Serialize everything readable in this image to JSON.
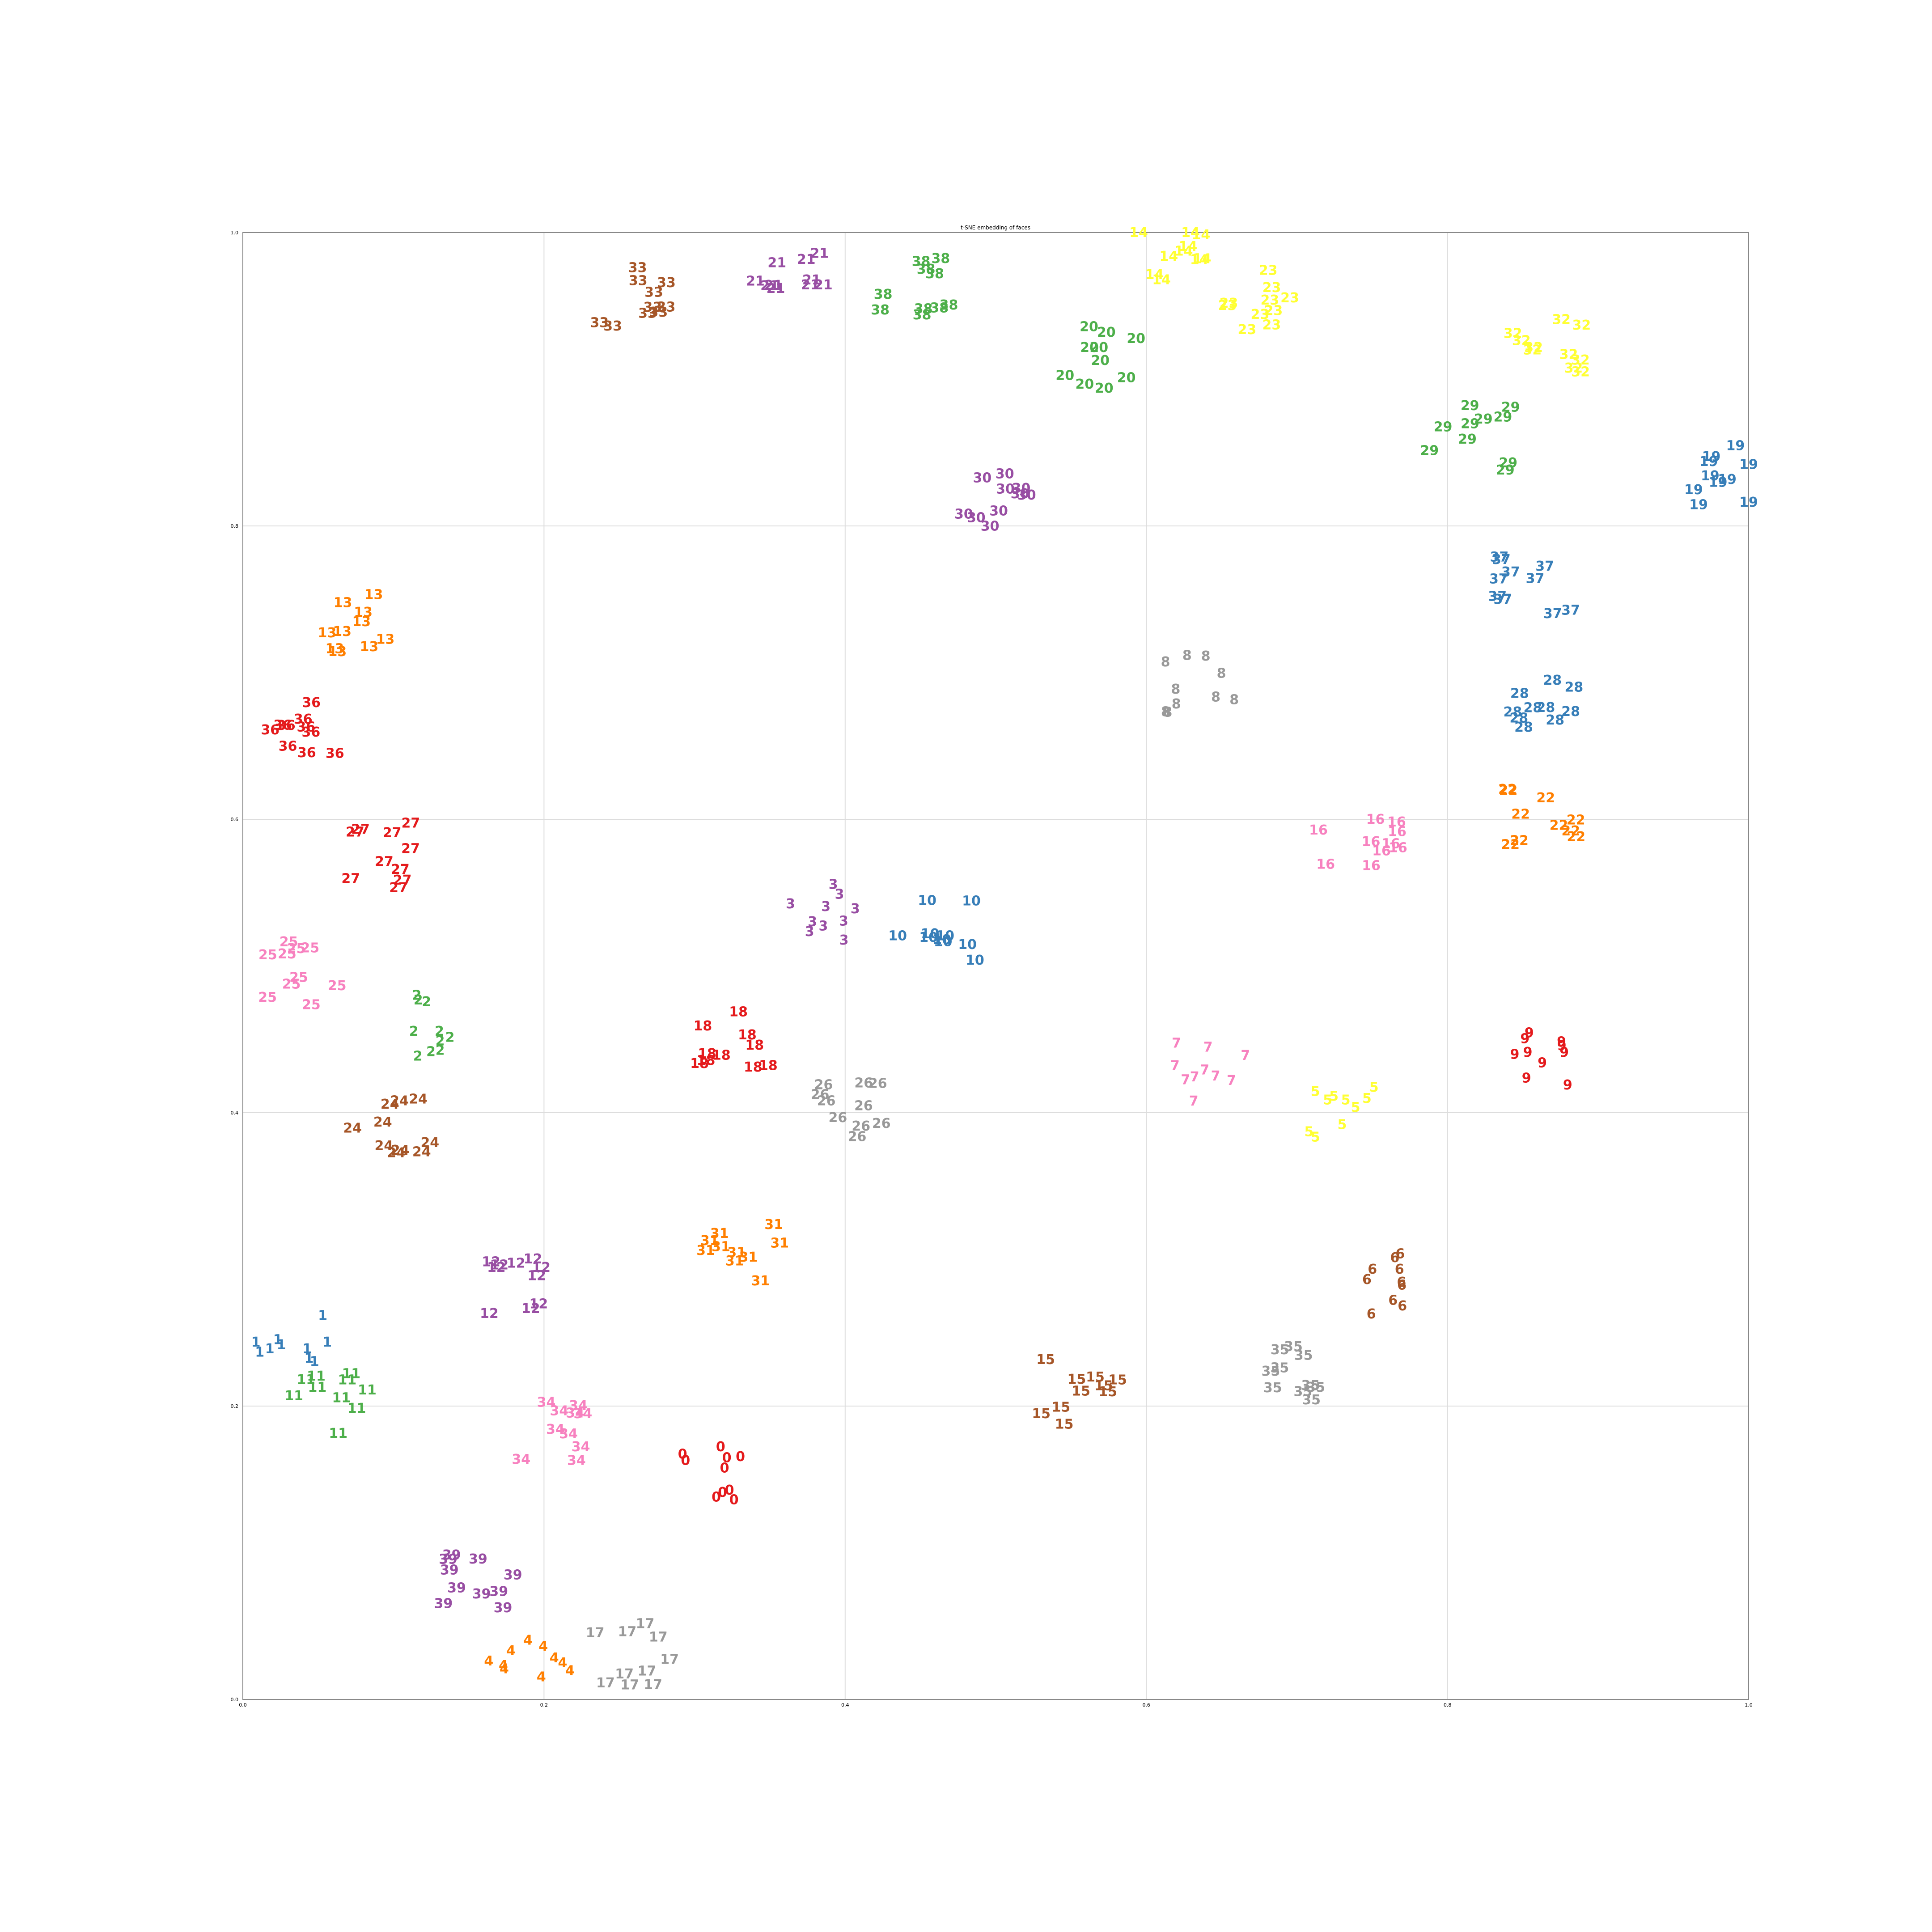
{
  "chart_data": {
    "type": "scatter",
    "title": "t-SNE embedding of faces",
    "xlim": [
      0.0,
      1.0
    ],
    "ylim": [
      0.0,
      1.0
    ],
    "xticks": [
      "0.0",
      "0.2",
      "0.4",
      "0.6",
      "0.8",
      "1.0"
    ],
    "yticks": [
      "0.0",
      "0.2",
      "0.4",
      "0.6",
      "0.8",
      "1.0"
    ],
    "grid": true,
    "colors": [
      "#e41a1c",
      "#377eb8",
      "#4daf4a",
      "#984ea3",
      "#ff7f00",
      "#ffff33",
      "#a65628",
      "#f781bf",
      "#999999"
    ],
    "clusters": [
      {
        "label": "0",
        "center": [
          0.31,
          0.15
        ]
      },
      {
        "label": "1",
        "center": [
          0.03,
          0.245
        ]
      },
      {
        "label": "2",
        "center": [
          0.12,
          0.46
        ]
      },
      {
        "label": "3",
        "center": [
          0.39,
          0.54
        ]
      },
      {
        "label": "4",
        "center": [
          0.19,
          0.02
        ]
      },
      {
        "label": "5",
        "center": [
          0.735,
          0.395
        ]
      },
      {
        "label": "6",
        "center": [
          0.76,
          0.285
        ]
      },
      {
        "label": "7",
        "center": [
          0.64,
          0.43
        ]
      },
      {
        "label": "8",
        "center": [
          0.635,
          0.69
        ]
      },
      {
        "label": "9",
        "center": [
          0.865,
          0.44
        ]
      },
      {
        "label": "10",
        "center": [
          0.46,
          0.525
        ]
      },
      {
        "label": "11",
        "center": [
          0.06,
          0.2
        ]
      },
      {
        "label": "12",
        "center": [
          0.18,
          0.28
        ]
      },
      {
        "label": "13",
        "center": [
          0.08,
          0.735
        ]
      },
      {
        "label": "14",
        "center": [
          0.62,
          0.985
        ]
      },
      {
        "label": "15",
        "center": [
          0.555,
          0.21
        ]
      },
      {
        "label": "16",
        "center": [
          0.74,
          0.585
        ]
      },
      {
        "label": "17",
        "center": [
          0.26,
          0.03
        ]
      },
      {
        "label": "18",
        "center": [
          0.33,
          0.45
        ]
      },
      {
        "label": "19",
        "center": [
          0.99,
          0.835
        ]
      },
      {
        "label": "20",
        "center": [
          0.57,
          0.915
        ]
      },
      {
        "label": "21",
        "center": [
          0.36,
          0.965
        ]
      },
      {
        "label": "22",
        "center": [
          0.86,
          0.605
        ]
      },
      {
        "label": "23",
        "center": [
          0.67,
          0.955
        ]
      },
      {
        "label": "24",
        "center": [
          0.1,
          0.395
        ]
      },
      {
        "label": "25",
        "center": [
          0.04,
          0.495
        ]
      },
      {
        "label": "26",
        "center": [
          0.405,
          0.405
        ]
      },
      {
        "label": "27",
        "center": [
          0.09,
          0.575
        ]
      },
      {
        "label": "28",
        "center": [
          0.86,
          0.68
        ]
      },
      {
        "label": "29",
        "center": [
          0.815,
          0.86
        ]
      },
      {
        "label": "30",
        "center": [
          0.495,
          0.815
        ]
      },
      {
        "label": "31",
        "center": [
          0.33,
          0.305
        ]
      },
      {
        "label": "32",
        "center": [
          0.865,
          0.925
        ]
      },
      {
        "label": "33",
        "center": [
          0.26,
          0.955
        ]
      },
      {
        "label": "34",
        "center": [
          0.2,
          0.185
        ]
      },
      {
        "label": "35",
        "center": [
          0.71,
          0.225
        ]
      },
      {
        "label": "36",
        "center": [
          0.04,
          0.66
        ]
      },
      {
        "label": "37",
        "center": [
          0.86,
          0.76
        ]
      },
      {
        "label": "38",
        "center": [
          0.45,
          0.965
        ]
      },
      {
        "label": "39",
        "center": [
          0.16,
          0.085
        ]
      }
    ]
  }
}
